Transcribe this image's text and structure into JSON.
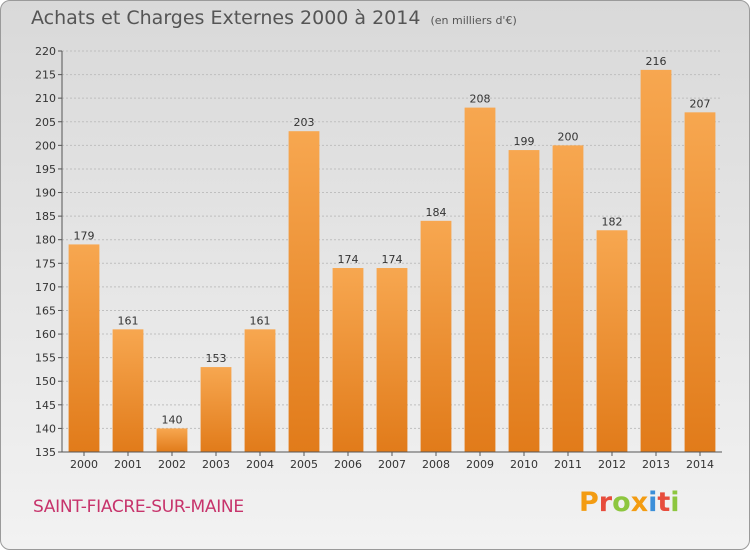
{
  "header": {
    "title": "Achats et Charges Externes 2000 à 2014",
    "unit": "(en milliers d'€)"
  },
  "footer": {
    "commune": "SAINT-FIACRE-SUR-MAINE",
    "brand": "Proxiti"
  },
  "colors": {
    "bar_top": "#f7a750",
    "bar_bottom": "#e17b1a",
    "commune": "#c7336b",
    "brand_letters": [
      "#f39c12",
      "#e74c3c",
      "#8dc63f",
      "#f39c12",
      "#3b8fd9",
      "#e74c3c",
      "#8dc63f"
    ]
  },
  "chart_data": {
    "type": "bar",
    "title": "Achats et Charges Externes 2000 à 2014",
    "subtitle": "(en milliers d'€)",
    "xlabel": "",
    "ylabel": "",
    "ylim": [
      135,
      220
    ],
    "ytick_step": 5,
    "grid": true,
    "categories": [
      "2000",
      "2001",
      "2002",
      "2003",
      "2004",
      "2005",
      "2006",
      "2007",
      "2008",
      "2009",
      "2010",
      "2011",
      "2012",
      "2013",
      "2014"
    ],
    "values": [
      179,
      161,
      140,
      153,
      161,
      203,
      174,
      174,
      184,
      208,
      199,
      200,
      182,
      216,
      207
    ]
  }
}
